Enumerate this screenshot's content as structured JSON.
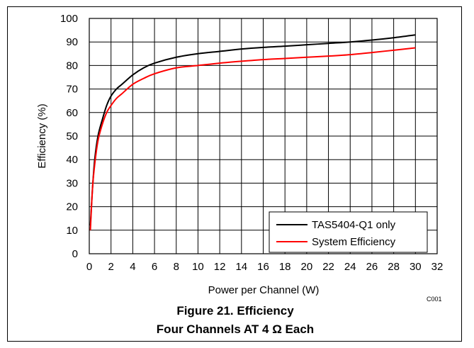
{
  "chart_data": {
    "type": "line",
    "xlabel": "Power per Channel (W)",
    "ylabel": "Efficiency  (%)",
    "xlim": [
      0,
      32
    ],
    "ylim": [
      0,
      100
    ],
    "x_ticks": [
      0,
      2,
      4,
      6,
      8,
      10,
      12,
      14,
      16,
      18,
      20,
      22,
      24,
      26,
      28,
      30,
      32
    ],
    "y_ticks": [
      0,
      10,
      20,
      30,
      40,
      50,
      60,
      70,
      80,
      90,
      100
    ],
    "grid": true,
    "legend_position": "bottom-right",
    "series": [
      {
        "name": "TAS5404-Q1 only",
        "color": "#000000",
        "x": [
          0.1,
          0.3,
          0.5,
          0.8,
          1.2,
          1.6,
          2,
          2.5,
          3,
          4,
          5,
          6,
          8,
          10,
          12,
          14,
          16,
          18,
          20,
          22,
          24,
          26,
          28,
          30
        ],
        "y": [
          12,
          28,
          40,
          50,
          57,
          63,
          67,
          70,
          72,
          76,
          79,
          81,
          83.5,
          85,
          86,
          87,
          87.7,
          88.2,
          88.8,
          89.4,
          90,
          90.8,
          91.8,
          93
        ]
      },
      {
        "name": "System Efficiency",
        "color": "#ff0000",
        "x": [
          0.1,
          0.3,
          0.5,
          0.8,
          1.2,
          1.6,
          2,
          2.5,
          3,
          4,
          5,
          6,
          8,
          10,
          12,
          14,
          16,
          18,
          20,
          22,
          24,
          26,
          28,
          30
        ],
        "y": [
          10,
          28,
          38,
          48,
          55,
          60,
          63,
          66,
          68,
          72,
          74.5,
          76.5,
          79,
          80,
          81,
          81.8,
          82.5,
          83,
          83.5,
          84,
          84.6,
          85.5,
          86.5,
          87.5
        ]
      }
    ]
  },
  "note": "C001",
  "caption": {
    "line1": "Figure 21. Efficiency",
    "line2": "Four Channels AT 4 Ω Each"
  }
}
